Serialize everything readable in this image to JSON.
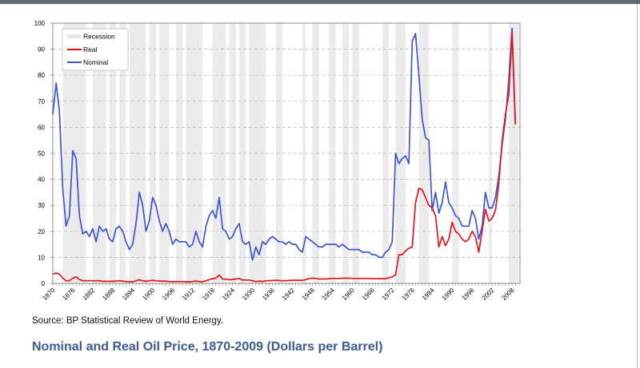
{
  "chart_data": {
    "type": "line",
    "title": "Nominal and Real Oil Price, 1870-2009 (Dollars per Barrel)",
    "source": "Source: BP Statistical Review of World Energy.",
    "xlabel": "",
    "ylabel": "",
    "xlim": [
      1870,
      2009
    ],
    "ylim": [
      0,
      100
    ],
    "grid": true,
    "legend": "top-left",
    "yticks": [
      "0",
      "10",
      "20",
      "30",
      "40",
      "50",
      "60",
      "70",
      "80",
      "90",
      "100"
    ],
    "xticks": [
      "1870",
      "1876",
      "1882",
      "1888",
      "1894",
      "1900",
      "1906",
      "1912",
      "1918",
      "1924",
      "1930",
      "1936",
      "1942",
      "1948",
      "1954",
      "1960",
      "1966",
      "1972",
      "1978",
      "1984",
      "1990",
      "1996",
      "2002",
      "2008"
    ],
    "legend_entries": [
      {
        "name": "Recession",
        "color": "#e6e6e6"
      },
      {
        "name": "Real",
        "color": "#e3141b"
      },
      {
        "name": "Nominal",
        "color": "#3a55d6"
      }
    ],
    "recessions": [
      [
        1873,
        1879
      ],
      [
        1882,
        1885
      ],
      [
        1887,
        1888
      ],
      [
        1890,
        1891
      ],
      [
        1893,
        1894
      ],
      [
        1895,
        1897
      ],
      [
        1899,
        1900
      ],
      [
        1902,
        1904
      ],
      [
        1907,
        1908
      ],
      [
        1910,
        1912
      ],
      [
        1913,
        1914
      ],
      [
        1918,
        1919
      ],
      [
        1920,
        1921
      ],
      [
        1923,
        1924
      ],
      [
        1926,
        1927
      ],
      [
        1929,
        1933
      ],
      [
        1937,
        1938
      ],
      [
        1945,
        1945
      ],
      [
        1948,
        1949
      ],
      [
        1953,
        1954
      ],
      [
        1957,
        1958
      ],
      [
        1960,
        1961
      ],
      [
        1969,
        1970
      ],
      [
        1973,
        1975
      ],
      [
        1980,
        1980
      ],
      [
        1981,
        1982
      ],
      [
        1990,
        1991
      ],
      [
        2001,
        2001
      ],
      [
        2007,
        2009
      ]
    ],
    "x": [
      1870,
      1871,
      1872,
      1873,
      1874,
      1875,
      1876,
      1877,
      1878,
      1879,
      1880,
      1881,
      1882,
      1883,
      1884,
      1885,
      1886,
      1887,
      1888,
      1889,
      1890,
      1891,
      1892,
      1893,
      1894,
      1895,
      1896,
      1897,
      1898,
      1899,
      1900,
      1901,
      1902,
      1903,
      1904,
      1905,
      1906,
      1907,
      1908,
      1909,
      1910,
      1911,
      1912,
      1913,
      1914,
      1915,
      1916,
      1917,
      1918,
      1919,
      1920,
      1921,
      1922,
      1923,
      1924,
      1925,
      1926,
      1927,
      1928,
      1929,
      1930,
      1931,
      1932,
      1933,
      1934,
      1935,
      1936,
      1937,
      1938,
      1939,
      1940,
      1941,
      1942,
      1943,
      1944,
      1945,
      1946,
      1947,
      1948,
      1949,
      1950,
      1951,
      1952,
      1953,
      1954,
      1955,
      1956,
      1957,
      1958,
      1959,
      1960,
      1961,
      1962,
      1963,
      1964,
      1965,
      1966,
      1967,
      1968,
      1969,
      1970,
      1971,
      1972,
      1973,
      1974,
      1975,
      1976,
      1977,
      1978,
      1979,
      1980,
      1981,
      1982,
      1983,
      1984,
      1985,
      1986,
      1987,
      1988,
      1989,
      1990,
      1991,
      1992,
      1993,
      1994,
      1995,
      1996,
      1997,
      1998,
      1999,
      2000,
      2001,
      2002,
      2003,
      2004,
      2005,
      2006,
      2007,
      2008,
      2009
    ],
    "series": [
      {
        "name": "Nominal",
        "color": "#3a55d6",
        "values": [
          65,
          77,
          66,
          36,
          22,
          26,
          51,
          48,
          26,
          19,
          20,
          18,
          21,
          16,
          22,
          20,
          21,
          17,
          16,
          21,
          22,
          20,
          16,
          13,
          15,
          23,
          35,
          30,
          20,
          24,
          33,
          30,
          24,
          20,
          23,
          20,
          15,
          17,
          16,
          16,
          16,
          14,
          15,
          20,
          16,
          14,
          22,
          26,
          28,
          25,
          33,
          21,
          20,
          17,
          18,
          21,
          23,
          16,
          15,
          16,
          9,
          14,
          11,
          16,
          15,
          17,
          18,
          17,
          16,
          16,
          15,
          16,
          15,
          15,
          13,
          12,
          18,
          17,
          16,
          15,
          14,
          14,
          15,
          15,
          15,
          15,
          14,
          15,
          14,
          13,
          13,
          13,
          13,
          12,
          12,
          12,
          11,
          11,
          10,
          10,
          12,
          13,
          16,
          50,
          46,
          48,
          49,
          46,
          93,
          96,
          80,
          63,
          56,
          55,
          28,
          35,
          27,
          31,
          39,
          31,
          29,
          26,
          25,
          22,
          22,
          22,
          28,
          25,
          17,
          22,
          35,
          29,
          29,
          33,
          41,
          53,
          63,
          78,
          98,
          62
        ]
      },
      {
        "name": "Real",
        "color": "#e3141b",
        "values": [
          3.5,
          4,
          3.5,
          2,
          1,
          1,
          2,
          2.5,
          1.5,
          1,
          1,
          1,
          1,
          1,
          1,
          0.8,
          0.8,
          0.8,
          0.8,
          0.9,
          1,
          0.9,
          0.7,
          0.6,
          0.6,
          1,
          1.4,
          1,
          0.8,
          1,
          1.2,
          1,
          0.9,
          0.9,
          0.9,
          0.7,
          0.6,
          0.7,
          0.7,
          0.7,
          0.6,
          0.6,
          0.7,
          0.9,
          0.7,
          0.6,
          1,
          1.4,
          1.8,
          2,
          3.2,
          1.7,
          1.6,
          1.4,
          1.5,
          1.7,
          1.9,
          1.3,
          1.3,
          1.3,
          1,
          0.7,
          0.9,
          0.7,
          1,
          1,
          1.1,
          1.2,
          1.1,
          1,
          1,
          1.1,
          1.2,
          1.2,
          1.2,
          1.2,
          1.4,
          1.9,
          2,
          1.9,
          1.7,
          1.7,
          1.7,
          1.8,
          1.9,
          1.9,
          1.9,
          2,
          2,
          2,
          1.9,
          1.9,
          1.9,
          1.9,
          1.9,
          1.9,
          1.8,
          1.8,
          1.8,
          1.8,
          1.8,
          2.2,
          2.5,
          3.3,
          11,
          11,
          12.5,
          13.5,
          14,
          31,
          36.5,
          36,
          33,
          30,
          29,
          26,
          14,
          18,
          14.5,
          17,
          23.5,
          20,
          19,
          17,
          16,
          17,
          20,
          18,
          12,
          20,
          28.5,
          24,
          25,
          28,
          38,
          54.5,
          65,
          72.5,
          96,
          61
        ]
      }
    ]
  }
}
